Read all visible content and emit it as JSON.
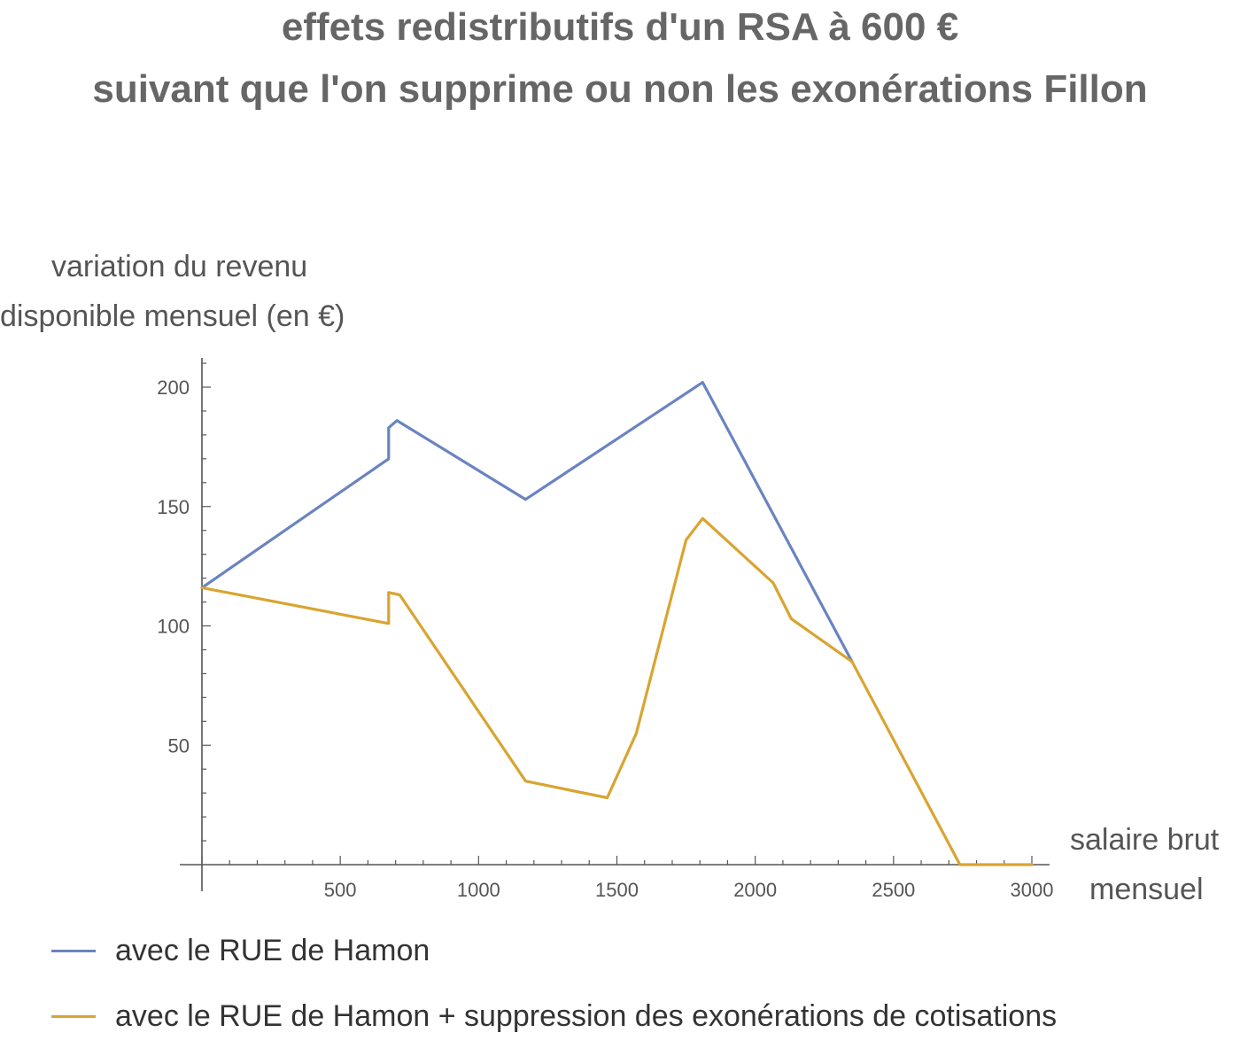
{
  "chart_data": {
    "type": "line",
    "title": "effets redistributifs d'un RSA à 600 €",
    "subtitle": "suivant que l'on supprime ou non les exonérations Fillon",
    "ylabel_lines": [
      "variation du revenu",
      "disponible mensuel (en €)"
    ],
    "xlabel_lines": [
      "salaire brut",
      "mensuel"
    ],
    "xlim": [
      0,
      3050
    ],
    "ylim": [
      0,
      212
    ],
    "xticks": [
      500,
      1000,
      1500,
      2000,
      2500,
      3000
    ],
    "yticks": [
      50,
      100,
      150,
      200
    ],
    "grid": false,
    "legend_position": "bottom",
    "series": [
      {
        "name": "avec le RUE de Hamon",
        "color": "#6a84c1",
        "x": [
          0,
          675,
          675,
          705,
          1170,
          1810,
          2350
        ],
        "y": [
          116,
          170,
          183,
          186,
          153,
          202,
          85
        ]
      },
      {
        "name": "avec le RUE de Hamon + suppression des exonérations de cotisations",
        "color": "#d9a431",
        "x": [
          0,
          675,
          675,
          715,
          1170,
          1465,
          1570,
          1750,
          1810,
          2065,
          2130,
          2350,
          2740,
          3000
        ],
        "y": [
          116,
          101,
          114,
          113,
          35,
          28,
          55,
          136,
          145,
          118,
          103,
          85,
          0,
          0
        ]
      }
    ]
  }
}
